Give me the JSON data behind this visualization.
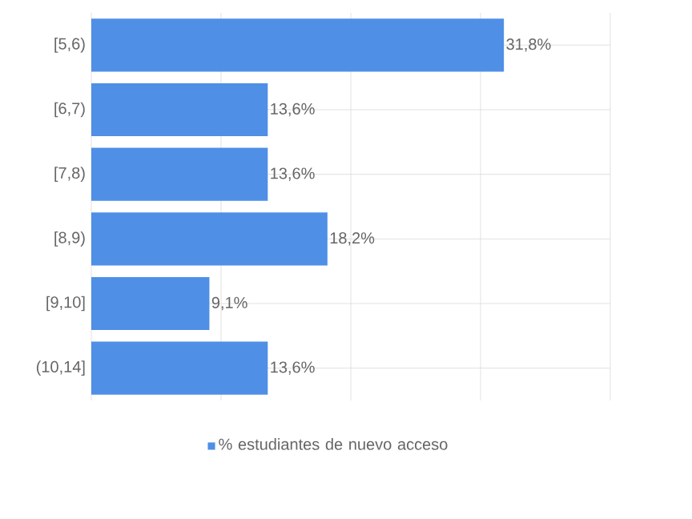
{
  "chart_data": {
    "type": "bar",
    "orientation": "horizontal",
    "categories": [
      "[5,6)",
      "[6,7)",
      "[7,8)",
      "[8,9)",
      "[9,10]",
      "(10,14]"
    ],
    "series": [
      {
        "name": "% estudiantes de nuevo acceso",
        "color": "#4f8fe6",
        "values": [
          31.8,
          13.6,
          13.6,
          18.2,
          9.1,
          13.6
        ],
        "value_labels": [
          "31,8%",
          "13,6%",
          "13,6%",
          "18,2%",
          "9,1%",
          "13,6%"
        ]
      }
    ],
    "xlim": [
      0,
      40
    ],
    "xticks": [
      {
        "value": 0,
        "label": null
      },
      {
        "value": 10,
        "label": null
      },
      {
        "value": 20,
        "label": null
      },
      {
        "value": 30,
        "label": null
      },
      {
        "value": 40,
        "label": null
      }
    ],
    "grid": true,
    "legend": "bottom",
    "tick_labels": "y"
  }
}
